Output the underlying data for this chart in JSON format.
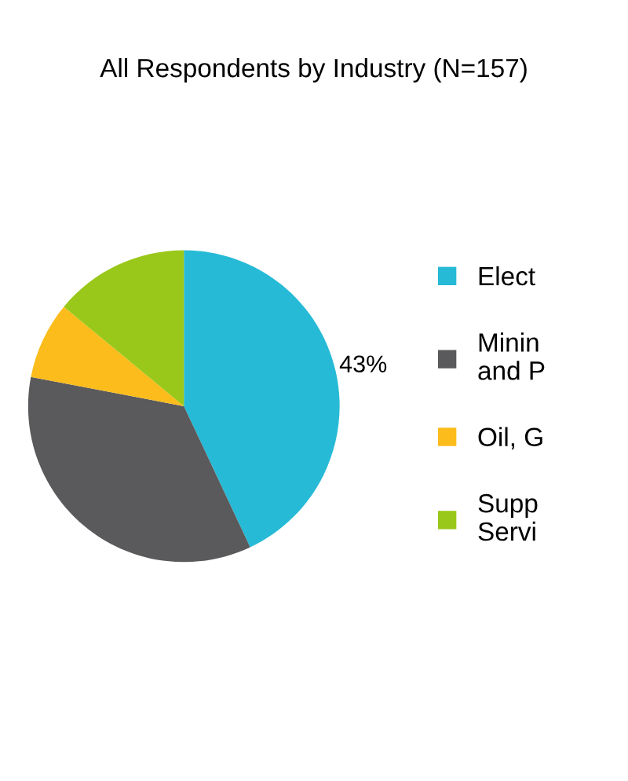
{
  "chart_data": {
    "type": "pie",
    "title": "All Respondents by Industry (N=157)",
    "categories": [
      "Elect",
      "Minin\nand P",
      "Oil, G",
      "Supp\nServi"
    ],
    "values": [
      43,
      35,
      8,
      14
    ],
    "colors": [
      "#26bad6",
      "#5a5a5c",
      "#fbbc1c",
      "#9ac81a"
    ],
    "value_labels": [
      "43%",
      null,
      null,
      null
    ],
    "legend": "right"
  }
}
